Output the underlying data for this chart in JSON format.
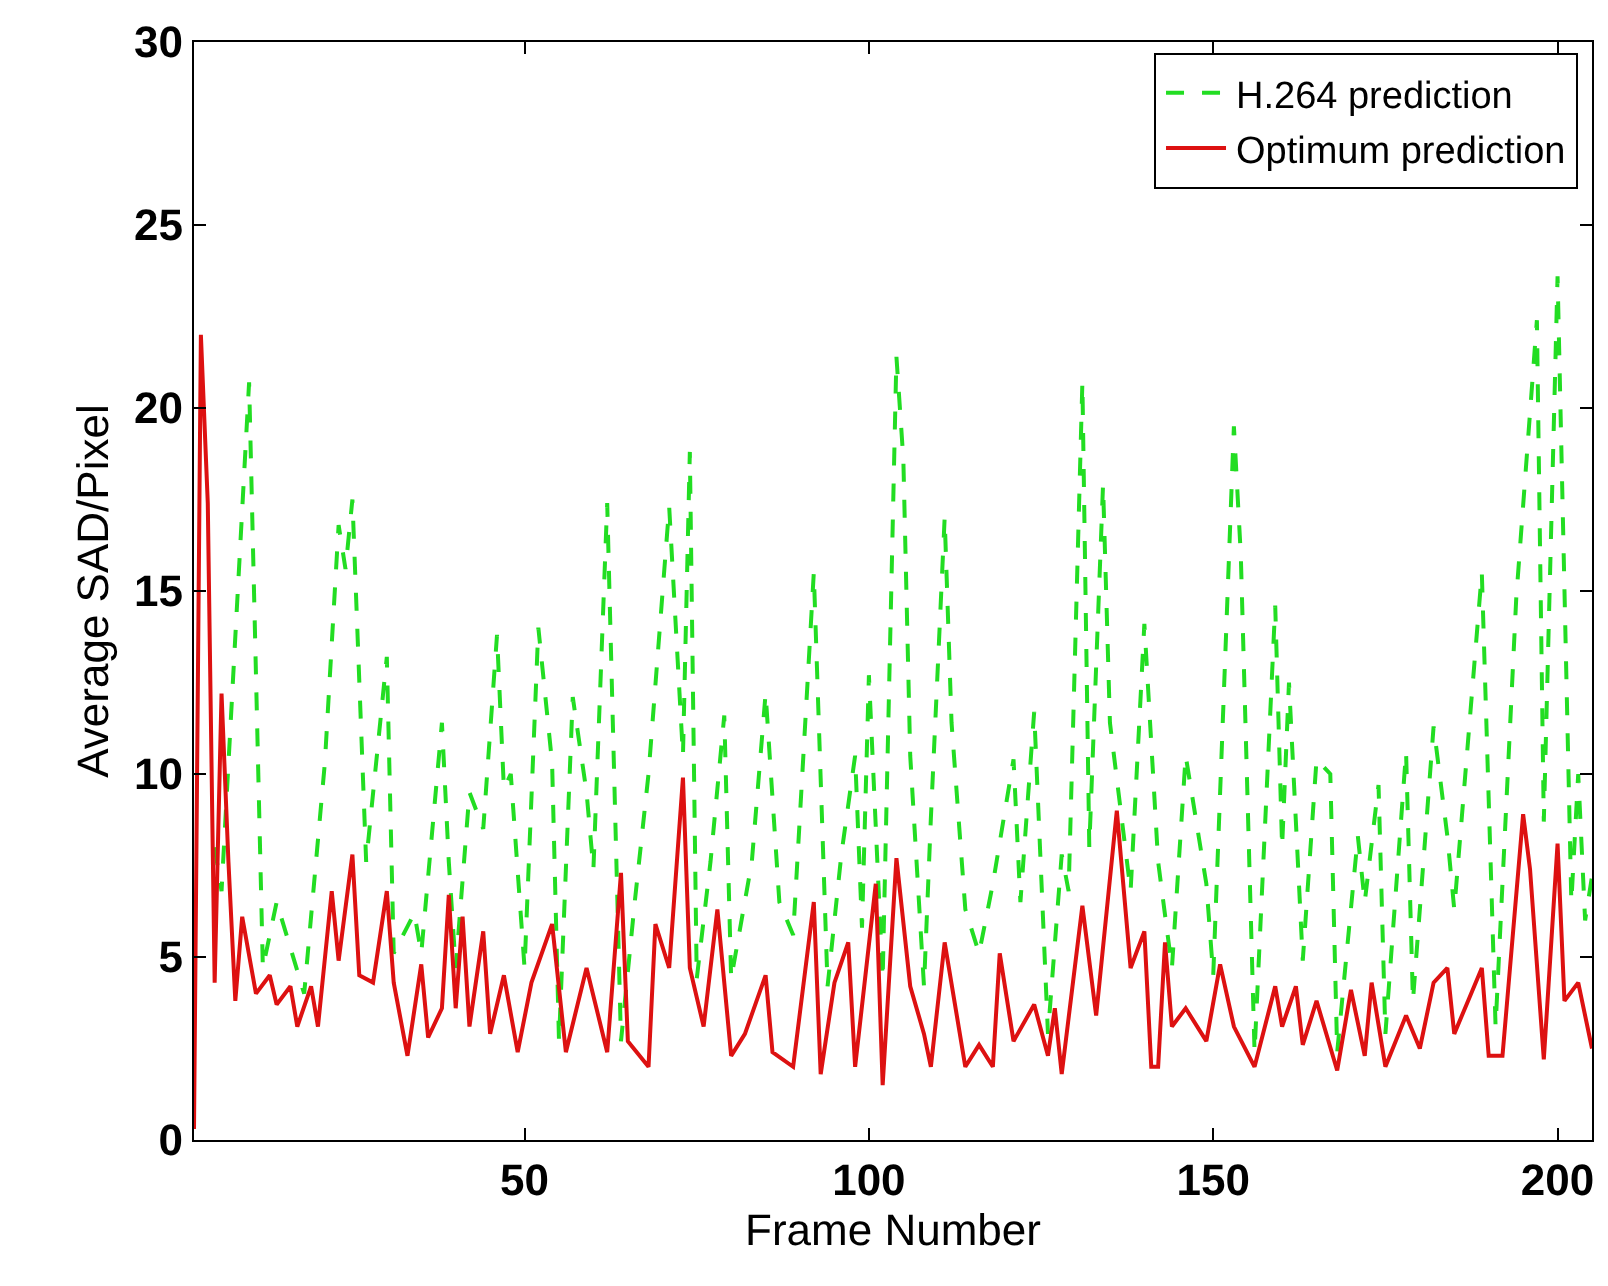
{
  "chart_data": {
    "type": "line",
    "xlabel": "Frame Number",
    "ylabel": "Average SAD/Pixel",
    "xlim": [
      2,
      205
    ],
    "ylim": [
      0,
      30
    ],
    "xticks": [
      50,
      100,
      150,
      200
    ],
    "yticks": [
      0,
      5,
      10,
      15,
      20,
      25,
      30
    ],
    "legend": "top right",
    "series": [
      {
        "name": "H.264 prediction",
        "color": "#22dd22",
        "line_style": "dashed",
        "x": [
          5,
          6,
          10,
          12,
          14,
          18,
          21,
          23,
          24,
          25,
          27,
          30,
          31,
          34,
          35,
          38,
          39,
          40,
          42,
          44,
          46,
          47,
          48,
          50,
          52,
          54,
          55,
          57,
          59,
          60,
          62,
          64,
          66,
          68,
          71,
          73,
          74,
          75,
          77,
          79,
          80,
          83,
          85,
          87,
          89,
          92,
          94,
          96,
          98,
          99,
          100,
          102,
          104,
          105,
          106,
          108,
          109,
          111,
          112,
          114,
          116,
          118,
          121,
          122,
          124,
          126,
          128,
          129,
          131,
          132,
          134,
          135,
          138,
          140,
          142,
          144,
          146,
          149,
          150,
          153,
          154,
          156,
          159,
          160,
          161,
          163,
          165,
          167,
          168,
          171,
          172,
          174,
          175,
          178,
          179,
          182,
          184,
          185,
          189,
          191,
          194,
          197,
          198,
          200,
          202,
          203,
          204,
          205
        ],
        "values": [
          8,
          6.8,
          20.7,
          4.7,
          6.5,
          4.0,
          10.3,
          16.8,
          15.6,
          17.5,
          7.6,
          13.2,
          5.1,
          6.2,
          5.1,
          11.4,
          7.6,
          4.7,
          9.5,
          8.5,
          13.8,
          9.6,
          10,
          4.7,
          14,
          10.3,
          2.7,
          12.1,
          9.5,
          7.4,
          17.4,
          2.7,
          6.5,
          10,
          17.3,
          10.5,
          18.8,
          4.4,
          7.6,
          11.6,
          4.4,
          7.6,
          12.2,
          6.5,
          5.6,
          15.5,
          4.2,
          7.8,
          10.5,
          5.8,
          12.7,
          4.4,
          21.4,
          18.6,
          10.5,
          4.2,
          8.8,
          17,
          11.4,
          6.3,
          5.1,
          7,
          10.4,
          6.5,
          11.7,
          2.9,
          7.8,
          6.8,
          20.7,
          8,
          17.9,
          11.4,
          6.8,
          14.1,
          7.6,
          4.7,
          10.5,
          7,
          4.5,
          19.5,
          16,
          2.4,
          14.6,
          8,
          12.5,
          4.9,
          10.4,
          10,
          2.4,
          8.3,
          6.5,
          9.7,
          2.9,
          10.6,
          3.8,
          11.3,
          8.3,
          6.3,
          15.5,
          3.1,
          14.8,
          22.4,
          8.7,
          23.6,
          6.5,
          10,
          6,
          7.2
        ]
      },
      {
        "name": "Optimum prediction",
        "color": "#dd1111",
        "line_style": "solid",
        "x": [
          2,
          3,
          4,
          5,
          6,
          7,
          8,
          9,
          11,
          13,
          14,
          16,
          17,
          19,
          20,
          22,
          23,
          25,
          26,
          28,
          30,
          31,
          33,
          35,
          36,
          38,
          39,
          40,
          41,
          42,
          44,
          45,
          47,
          49,
          51,
          54,
          56,
          59,
          62,
          64,
          65,
          68,
          69,
          71,
          73,
          74,
          76,
          78,
          80,
          82,
          85,
          86,
          89,
          92,
          93,
          95,
          97,
          98,
          101,
          102,
          104,
          106,
          108,
          109,
          111,
          114,
          116,
          118,
          119,
          121,
          124,
          126,
          127,
          128,
          131,
          133,
          136,
          138,
          140,
          141,
          142,
          143,
          144,
          146,
          149,
          151,
          153,
          156,
          159,
          160,
          162,
          163,
          165,
          168,
          170,
          172,
          173,
          175,
          178,
          180,
          182,
          184,
          185,
          187,
          189,
          190,
          192,
          195,
          196,
          198,
          200,
          201,
          203,
          205
        ],
        "values": [
          0.3,
          22,
          17.4,
          4.3,
          12.2,
          7.6,
          3.8,
          6.1,
          4,
          4.5,
          3.7,
          4.2,
          3.1,
          4.2,
          3.1,
          6.8,
          4.9,
          7.8,
          4.5,
          4.3,
          6.8,
          4.3,
          2.3,
          4.8,
          2.8,
          3.6,
          6.7,
          3.6,
          6.1,
          3.1,
          5.7,
          2.9,
          4.5,
          2.4,
          4.3,
          5.9,
          2.4,
          4.7,
          2.4,
          7.3,
          2.7,
          2,
          5.9,
          4.7,
          9.9,
          4.7,
          3.1,
          6.3,
          2.3,
          2.9,
          4.5,
          2.4,
          2,
          6.5,
          1.8,
          4.3,
          5.4,
          2,
          7,
          1.5,
          7.7,
          4.2,
          2.9,
          2,
          5.4,
          2,
          2.6,
          2,
          5.1,
          2.7,
          3.7,
          2.3,
          3.6,
          1.8,
          6.4,
          3.4,
          9,
          4.7,
          5.7,
          2,
          2,
          5.4,
          3.1,
          3.6,
          2.7,
          4.8,
          3.1,
          2,
          4.2,
          3.1,
          4.2,
          2.6,
          3.8,
          1.9,
          4.1,
          2.3,
          4.3,
          2,
          3.4,
          2.5,
          4.3,
          4.7,
          2.9,
          3.8,
          4.7,
          2.3,
          2.3,
          8.9,
          7.4,
          2.2,
          8.1,
          3.8,
          4.3,
          2.5
        ]
      }
    ]
  }
}
